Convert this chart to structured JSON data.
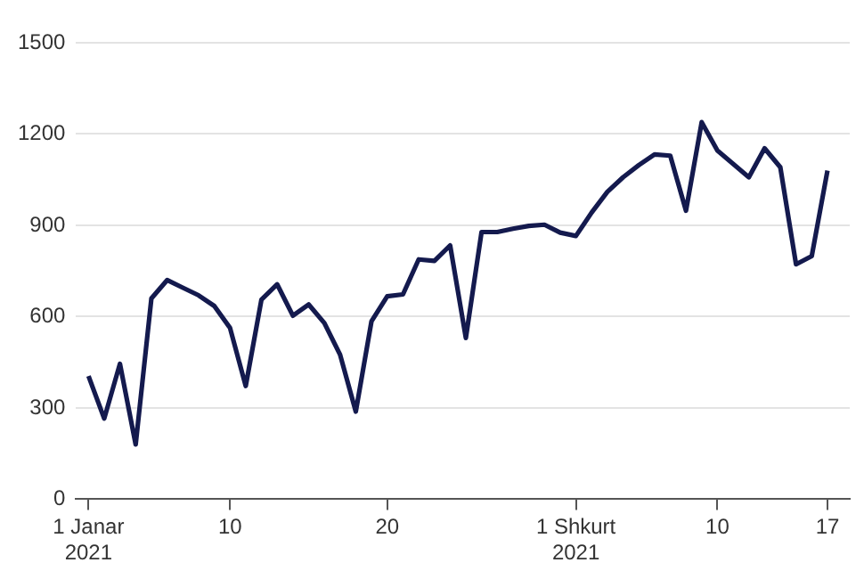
{
  "chart_data": {
    "type": "line",
    "x": [
      "2021-01-01",
      "2021-01-02",
      "2021-01-03",
      "2021-01-04",
      "2021-01-05",
      "2021-01-06",
      "2021-01-07",
      "2021-01-08",
      "2021-01-09",
      "2021-01-10",
      "2021-01-11",
      "2021-01-12",
      "2021-01-13",
      "2021-01-14",
      "2021-01-15",
      "2021-01-16",
      "2021-01-17",
      "2021-01-18",
      "2021-01-19",
      "2021-01-20",
      "2021-01-21",
      "2021-01-22",
      "2021-01-23",
      "2021-01-24",
      "2021-01-25",
      "2021-01-26",
      "2021-01-27",
      "2021-01-28",
      "2021-01-29",
      "2021-01-30",
      "2021-01-31",
      "2021-02-01",
      "2021-02-02",
      "2021-02-03",
      "2021-02-04",
      "2021-02-05",
      "2021-02-06",
      "2021-02-07",
      "2021-02-08",
      "2021-02-09",
      "2021-02-10",
      "2021-02-11",
      "2021-02-12",
      "2021-02-13",
      "2021-02-14",
      "2021-02-15",
      "2021-02-16",
      "2021-02-17"
    ],
    "series": [
      {
        "color": "#141a4e",
        "values": [
          405,
          265,
          445,
          180,
          660,
          720,
          695,
          670,
          635,
          563,
          372,
          656,
          706,
          603,
          640,
          579,
          475,
          288,
          585,
          667,
          673,
          788,
          783,
          834,
          530,
          878,
          878,
          889,
          898,
          902,
          876,
          865,
          942,
          1010,
          1058,
          1098,
          1133,
          1129,
          948,
          1239,
          1146,
          1102,
          1058,
          1153,
          1091,
          772,
          799,
          1080
        ]
      }
    ],
    "xlim": [
      "2020-12-31T05:00",
      "2021-02-18T10:00"
    ],
    "xticks": [
      {
        "value": "2021-01-01",
        "label": "1 Janar\n2021"
      },
      {
        "value": "2021-01-10",
        "label": "10"
      },
      {
        "value": "2021-01-20",
        "label": "20"
      },
      {
        "value": "2021-02-01",
        "label": "1 Shkurt\n2021"
      },
      {
        "value": "2021-02-10",
        "label": "10"
      },
      {
        "value": "2021-02-17",
        "label": "17"
      }
    ],
    "ylim": [
      0,
      1500
    ],
    "yticks": [
      0,
      300,
      600,
      900,
      1200,
      1500
    ],
    "grid": "y",
    "legend": false,
    "marker": "none",
    "line_style": "solid"
  }
}
